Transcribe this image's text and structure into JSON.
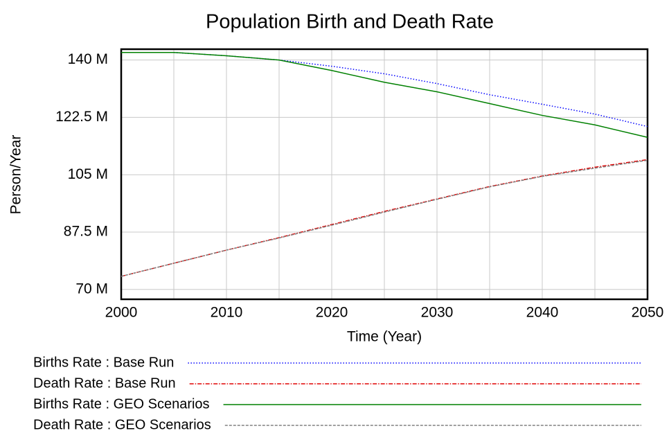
{
  "chart_data": {
    "type": "line",
    "title": "Population Birth and Death Rate",
    "x_label": "Time (Year)",
    "y_label": "Person/Year",
    "x": [
      2000,
      2005,
      2010,
      2015,
      2020,
      2025,
      2030,
      2035,
      2040,
      2045,
      2050
    ],
    "series": [
      {
        "name": "Births Rate : Base Run",
        "color": "#0000ff",
        "dash": "1.5,2.5",
        "values": [
          142300000,
          142300000,
          141300000,
          140000000,
          138100000,
          135800000,
          132800000,
          129400000,
          126500000,
          123500000,
          119700000
        ]
      },
      {
        "name": "Death Rate : Base Run",
        "color": "#e00000",
        "dash": "6,2,1.5,2",
        "values": [
          74000000,
          78000000,
          82000000,
          85800000,
          89800000,
          93800000,
          97600000,
          101400000,
          104600000,
          107300000,
          109600000
        ]
      },
      {
        "name": "Births Rate : GEO Scenarios",
        "color": "#008000",
        "dash": "none",
        "values": [
          142300000,
          142300000,
          141300000,
          140000000,
          136800000,
          133200000,
          130300000,
          126700000,
          123100000,
          120200000,
          116400000
        ]
      },
      {
        "name": "Death Rate : GEO Scenarios",
        "color": "#808080",
        "dash": "4,2",
        "values": [
          74000000,
          78000000,
          82000000,
          85700000,
          89600000,
          93600000,
          97500000,
          101300000,
          104500000,
          107000000,
          109400000
        ]
      }
    ],
    "xlim": [
      2000,
      2050
    ],
    "xticks": [
      2000,
      2010,
      2020,
      2030,
      2040,
      2050
    ],
    "xminorgrid": [
      2005,
      2015,
      2025,
      2035,
      2045
    ],
    "ylim": [
      67000000,
      143300000
    ],
    "yticks": [
      {
        "value": 70000000,
        "label": "70 M"
      },
      {
        "value": 87500000,
        "label": "87.5 M"
      },
      {
        "value": 105000000,
        "label": "105 M"
      },
      {
        "value": 122500000,
        "label": "122.5 M"
      },
      {
        "value": 140000000,
        "label": "140 M"
      }
    ],
    "grid": true
  }
}
